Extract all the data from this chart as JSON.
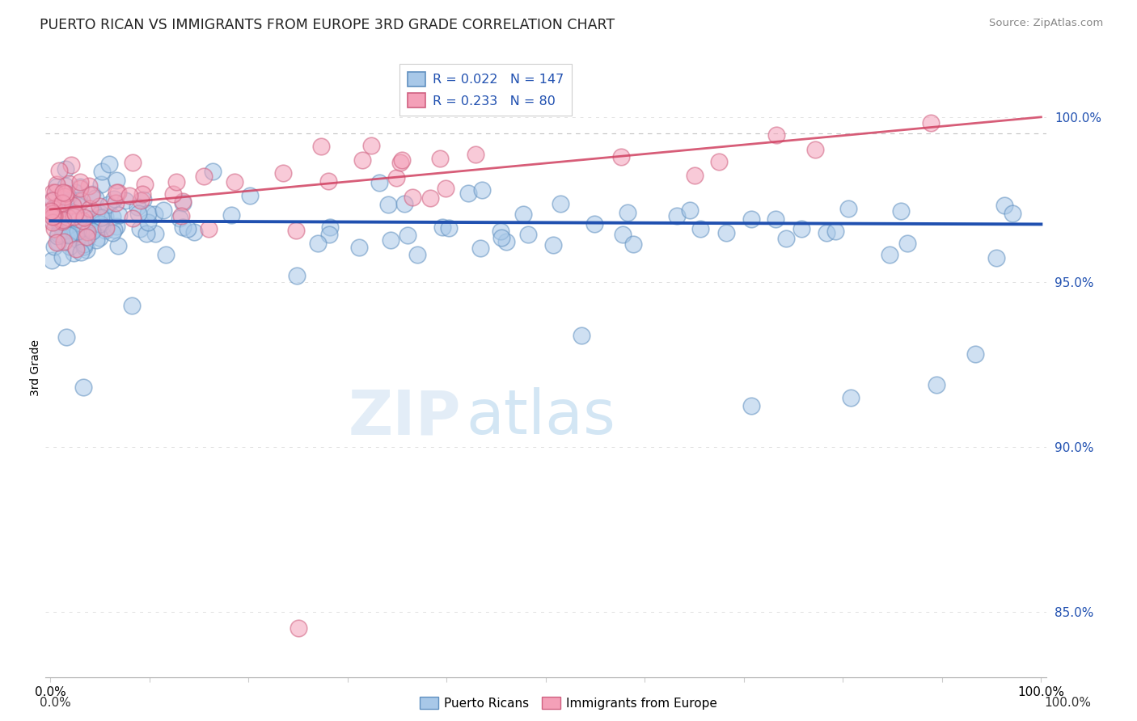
{
  "title": "PUERTO RICAN VS IMMIGRANTS FROM EUROPE 3RD GRADE CORRELATION CHART",
  "source": "Source: ZipAtlas.com",
  "ylabel": "3rd Grade",
  "y_ticks": [
    85.0,
    90.0,
    95.0,
    100.0
  ],
  "y_tick_labels": [
    "85.0%",
    "90.0%",
    "95.0%",
    "100.0%"
  ],
  "y_min": 83.0,
  "y_max": 101.8,
  "x_min": -0.5,
  "x_max": 100.5,
  "blue_R": 0.022,
  "blue_N": 147,
  "pink_R": 0.233,
  "pink_N": 80,
  "blue_color": "#a8c8e8",
  "pink_color": "#f4a0b8",
  "blue_edge_color": "#6090c0",
  "pink_edge_color": "#d06080",
  "blue_line_color": "#2050b0",
  "pink_line_color": "#d04060",
  "blue_line_flat_y": 96.85,
  "blue_line_slope": -0.001,
  "pink_line_start_y": 97.2,
  "pink_line_slope": 0.028,
  "dashed_line_y": 99.5,
  "watermark_zip": "ZIP",
  "watermark_atlas": "atlas",
  "legend_R_blue": "R = 0.022",
  "legend_N_blue": "N = 147",
  "legend_R_pink": "R = 0.233",
  "legend_N_pink": "N = 80"
}
